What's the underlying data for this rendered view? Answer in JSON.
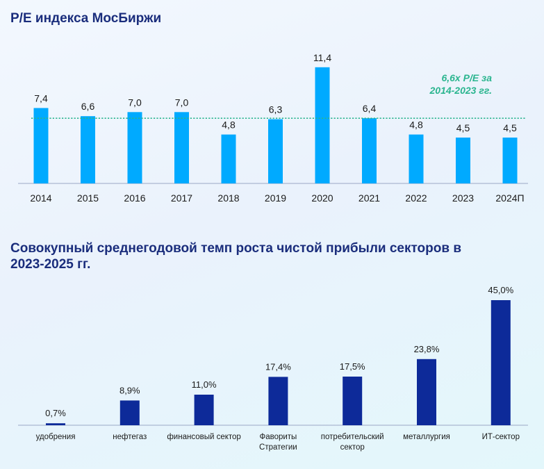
{
  "chart_data": [
    {
      "type": "bar",
      "title": "P/E индекса МосБиржи",
      "categories": [
        "2014",
        "2015",
        "2016",
        "2017",
        "2018",
        "2019",
        "2020",
        "2021",
        "2022",
        "2023",
        "2024П"
      ],
      "values": [
        7.4,
        6.6,
        7.0,
        7.0,
        4.8,
        6.3,
        11.4,
        6.4,
        4.8,
        4.5,
        4.5
      ],
      "value_labels": [
        "7,4",
        "6,6",
        "7,0",
        "7,0",
        "4,8",
        "6,3",
        "11,4",
        "6,4",
        "4,8",
        "4,5",
        "4,5"
      ],
      "reference_line": {
        "value": 6.6,
        "label_line1": "6,6x P/E за",
        "label_line2": "2014-2023 гг."
      },
      "ylim": [
        0,
        12
      ],
      "bar_color": "#00aaff",
      "line_color": "#2bb58f",
      "grid": false
    },
    {
      "type": "bar",
      "title": "Совокупный среднегодовой темп роста чистой прибыли секторов в 2023-2025 гг.",
      "categories": [
        [
          "удобрения"
        ],
        [
          "нефтегаз"
        ],
        [
          "финансовый сектор"
        ],
        [
          "Фавориты",
          "Стратегии"
        ],
        [
          "потребительский",
          "сектор"
        ],
        [
          "металлургия"
        ],
        [
          "ИТ-сектор"
        ]
      ],
      "values": [
        0.7,
        8.9,
        11.0,
        17.4,
        17.5,
        23.8,
        45.0
      ],
      "value_labels": [
        "0,7%",
        "8,9%",
        "11,0%",
        "17,4%",
        "17,5%",
        "23,8%",
        "45,0%"
      ],
      "ylim": [
        0,
        46
      ],
      "bar_color": "#0d2a99",
      "grid": false
    }
  ]
}
